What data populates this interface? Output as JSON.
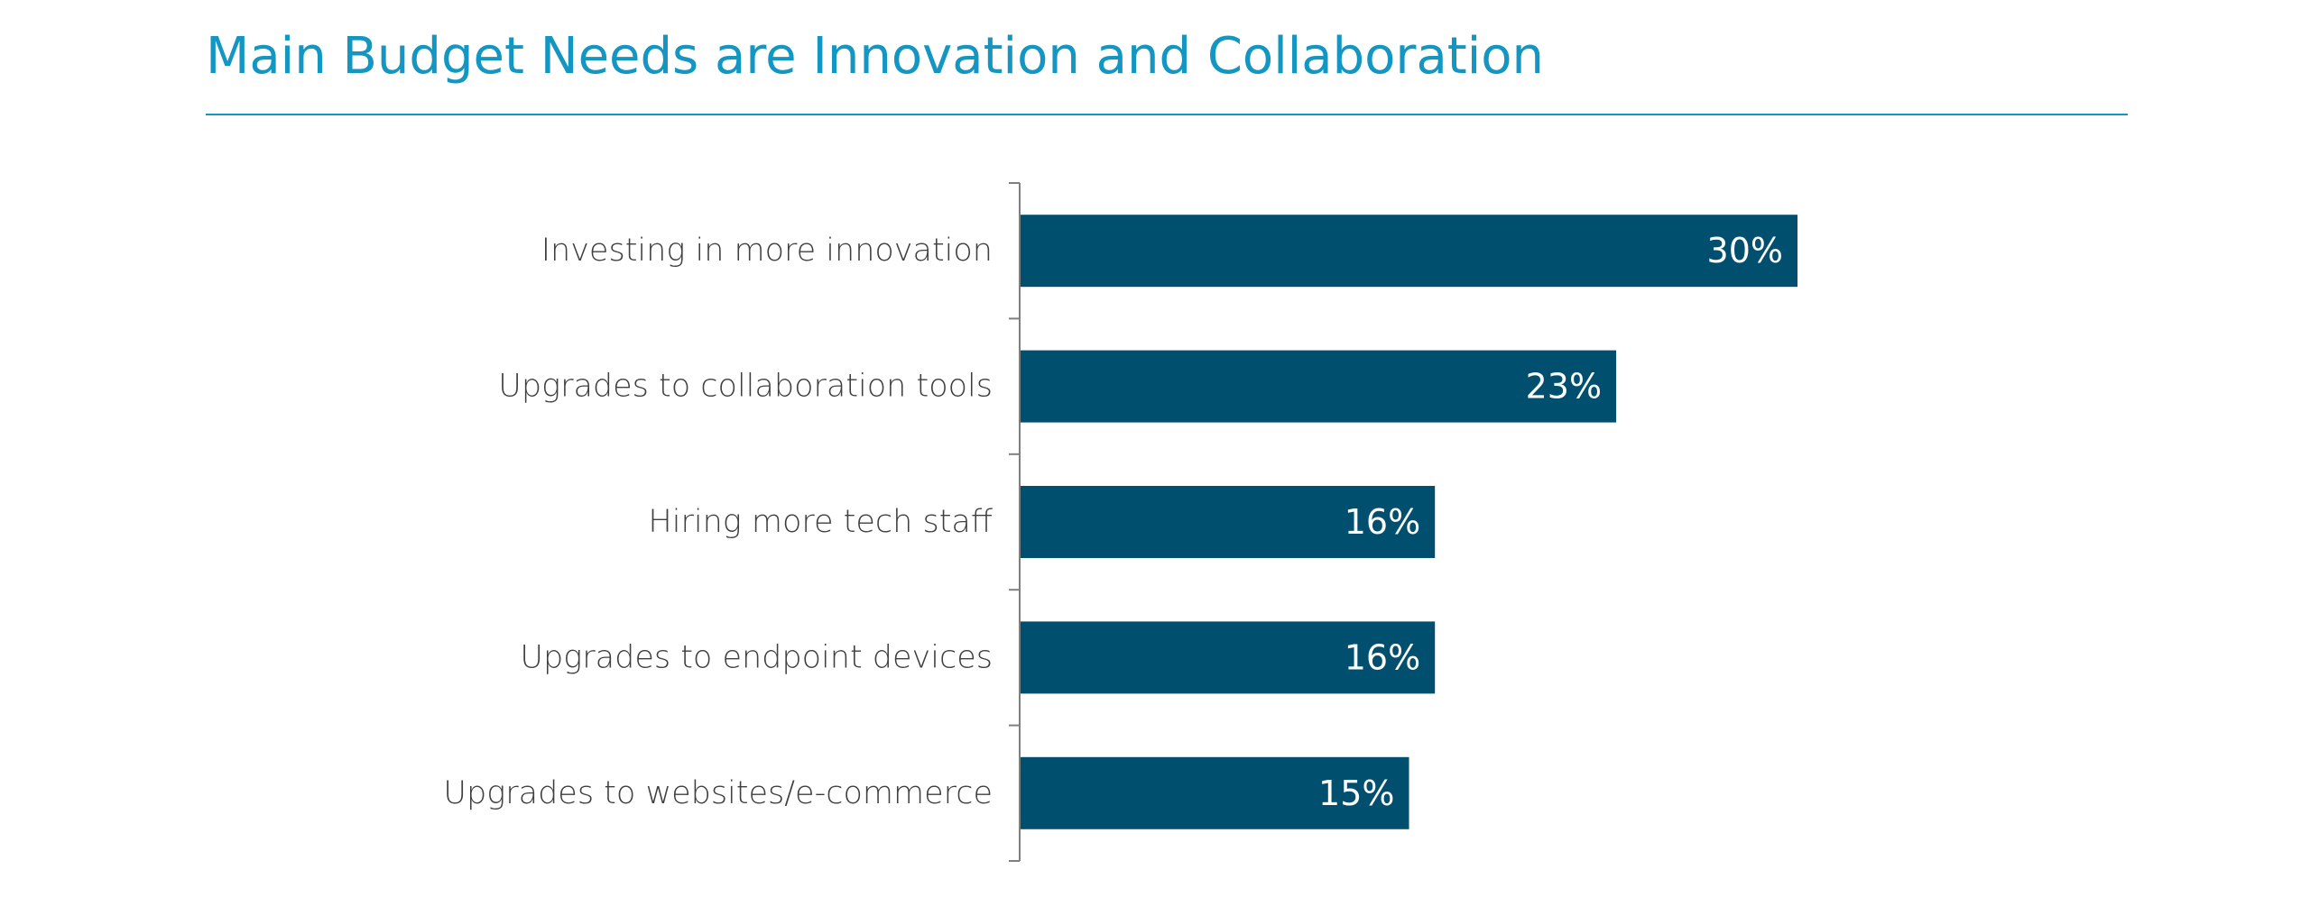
{
  "title": "Main Budget Needs are Innovation and Collaboration",
  "colors": {
    "title": "#1396c2",
    "bar": "#004f6f",
    "axis": "#7f7f7f",
    "label": "#3f3f3f",
    "value_label": "#ffffff"
  },
  "chart_data": {
    "type": "bar",
    "orientation": "horizontal",
    "title": "Main Budget Needs are Innovation and Collaboration",
    "categories": [
      "Investing in more innovation",
      "Upgrades to collaboration tools",
      "Hiring more tech staff",
      "Upgrades to endpoint devices",
      "Upgrades to websites/e-commerce"
    ],
    "values": [
      30,
      23,
      16,
      16,
      15
    ],
    "value_labels": [
      "30%",
      "23%",
      "16%",
      "16%",
      "15%"
    ],
    "unit": "%",
    "xlim": [
      0,
      30
    ],
    "grid": false,
    "legend": "none"
  }
}
